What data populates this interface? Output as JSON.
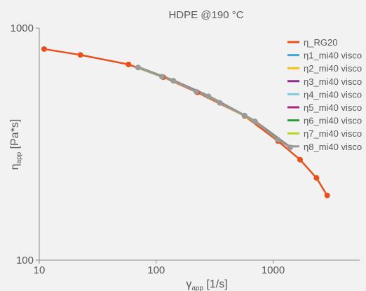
{
  "chart_data": {
    "type": "line",
    "title": "HDPE @190 °C",
    "xlabel": {
      "main": "γ",
      "sub": "app",
      "unit": "[1/s]"
    },
    "ylabel": {
      "main": "η",
      "sub": "app",
      "unit": "[Pa*s]"
    },
    "xscale": "log",
    "yscale": "log",
    "xlim": [
      10,
      5500
    ],
    "ylim": [
      100,
      1000
    ],
    "x_ticks": [
      "10",
      "100",
      "1000"
    ],
    "y_ticks": [
      "100",
      "1000"
    ],
    "grid": false,
    "legend_position": "top-right",
    "series": [
      {
        "name": "η_RG20",
        "color": "#e8511c",
        "marker": true,
        "points": [
          [
            11,
            812
          ],
          [
            22.5,
            766
          ],
          [
            58,
            697
          ],
          [
            115,
            614
          ],
          [
            225,
            528
          ],
          [
            570,
            418
          ],
          [
            1100,
            326
          ],
          [
            1700,
            271
          ],
          [
            2350,
            226
          ],
          [
            2900,
            190
          ]
        ]
      },
      {
        "name": "η1_mi40 visco",
        "color": "#3fa7dc",
        "marker": false,
        "points": [
          [
            70,
            676
          ],
          [
            140,
            593
          ],
          [
            280,
            508
          ],
          [
            700,
            396
          ],
          [
            1400,
            306
          ]
        ]
      },
      {
        "name": "η2_mi40 visco",
        "color": "#f5c20f",
        "marker": false,
        "points": [
          [
            70,
            676
          ],
          [
            140,
            593
          ],
          [
            280,
            508
          ],
          [
            700,
            396
          ],
          [
            1400,
            306
          ]
        ]
      },
      {
        "name": "η3_mi40 visco",
        "color": "#8e2d8e",
        "marker": false,
        "points": [
          [
            70,
            676
          ],
          [
            140,
            593
          ],
          [
            280,
            508
          ],
          [
            700,
            396
          ],
          [
            1400,
            306
          ]
        ]
      },
      {
        "name": "η4_mi40 visco",
        "color": "#7fcce0",
        "marker": false,
        "points": [
          [
            70,
            676
          ],
          [
            140,
            593
          ],
          [
            280,
            508
          ],
          [
            700,
            396
          ],
          [
            1400,
            306
          ]
        ]
      },
      {
        "name": "η5_mi40 visco",
        "color": "#b0247f",
        "marker": false,
        "points": [
          [
            70,
            676
          ],
          [
            140,
            593
          ],
          [
            280,
            508
          ],
          [
            700,
            396
          ],
          [
            1400,
            306
          ]
        ]
      },
      {
        "name": "η6_mi40 visco",
        "color": "#2e9b3e",
        "marker": false,
        "points": [
          [
            70,
            676
          ],
          [
            140,
            593
          ],
          [
            280,
            508
          ],
          [
            700,
            396
          ],
          [
            1400,
            306
          ]
        ]
      },
      {
        "name": "η7_mi40 visco",
        "color": "#b8d42a",
        "marker": false,
        "points": [
          [
            70,
            676
          ],
          [
            140,
            593
          ],
          [
            280,
            508
          ],
          [
            700,
            396
          ],
          [
            1400,
            306
          ]
        ]
      },
      {
        "name": "η8_mi40 visco",
        "color": "#9a9a9a",
        "marker": true,
        "points": [
          [
            70,
            676
          ],
          [
            112,
            617
          ],
          [
            140,
            593
          ],
          [
            220,
            532
          ],
          [
            280,
            508
          ],
          [
            350,
            476
          ],
          [
            570,
            420
          ],
          [
            700,
            396
          ],
          [
            1100,
            330
          ],
          [
            1400,
            306
          ]
        ]
      }
    ]
  }
}
